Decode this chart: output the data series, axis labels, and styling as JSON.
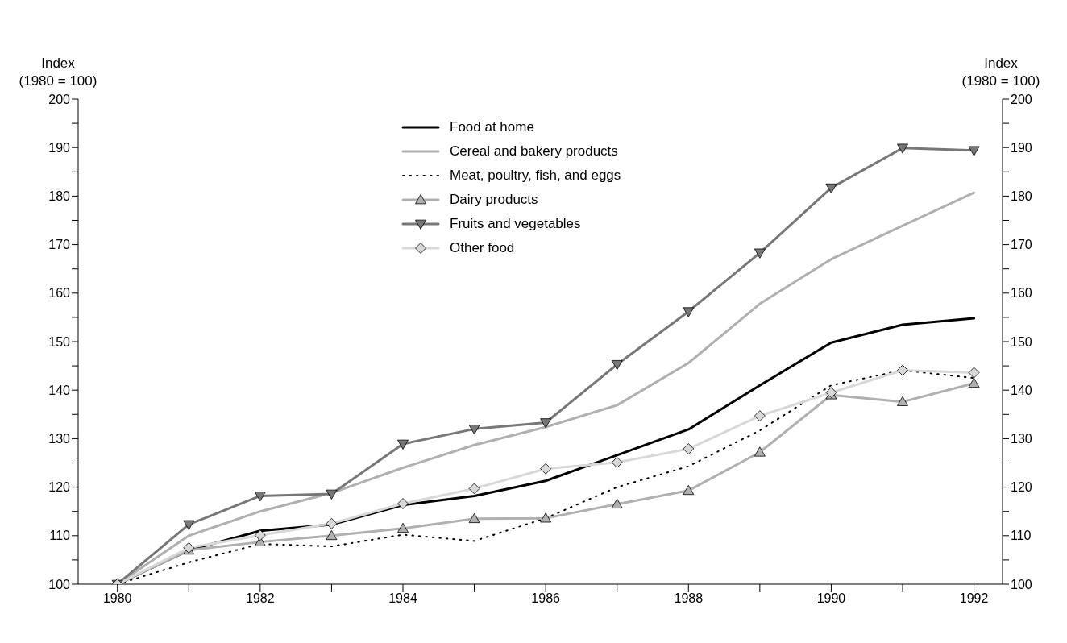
{
  "chart_data": {
    "type": "line",
    "ylabel": "Index\n(1980 = 100)",
    "y2label": "Index\n(1980 = 100)",
    "x": [
      1980,
      1981,
      1982,
      1983,
      1984,
      1985,
      1986,
      1987,
      1988,
      1989,
      1990,
      1991,
      1992
    ],
    "xlim": [
      1979.45,
      1992.4
    ],
    "xticks": [
      1980,
      {
        "value": 1981,
        "label": null
      },
      1982,
      {
        "value": 1983,
        "label": null
      },
      1984,
      {
        "value": 1985,
        "label": null
      },
      1986,
      {
        "value": 1987,
        "label": null
      },
      1988,
      {
        "value": 1989,
        "label": null
      },
      1990,
      {
        "value": 1991,
        "label": null
      },
      1992
    ],
    "ylim": [
      100,
      200
    ],
    "yticks": [
      100,
      {
        "value": 105,
        "label": null
      },
      110,
      {
        "value": 115,
        "label": null
      },
      120,
      {
        "value": 125,
        "label": null
      },
      130,
      {
        "value": 135,
        "label": null
      },
      140,
      {
        "value": 145,
        "label": null
      },
      150,
      {
        "value": 155,
        "label": null
      },
      160,
      {
        "value": 165,
        "label": null
      },
      170,
      {
        "value": 175,
        "label": null
      },
      180,
      {
        "value": 185,
        "label": null
      },
      190,
      {
        "value": 195,
        "label": null
      },
      200
    ],
    "y2lim": [
      100,
      200
    ],
    "y2ticks": [
      100,
      {
        "value": 105,
        "label": null
      },
      110,
      {
        "value": 115,
        "label": null
      },
      120,
      {
        "value": 125,
        "label": null
      },
      130,
      {
        "value": 135,
        "label": null
      },
      140,
      {
        "value": 145,
        "label": null
      },
      150,
      {
        "value": 155,
        "label": null
      },
      160,
      {
        "value": 165,
        "label": null
      },
      170,
      {
        "value": 175,
        "label": null
      },
      180,
      {
        "value": 185,
        "label": null
      },
      190,
      {
        "value": 195,
        "label": null
      },
      200
    ],
    "legend": "top",
    "series": [
      {
        "name": "Food at home",
        "color": "#000000",
        "line_style": "solid",
        "marker": "none",
        "values": [
          100,
          107,
          111,
          112.3,
          116.3,
          118.2,
          121.3,
          126.6,
          131.9,
          141,
          149.8,
          153.5,
          154.8
        ]
      },
      {
        "name": "Cereal and bakery products",
        "color": "#b0b0b0",
        "line_style": "solid",
        "marker": "none",
        "values": [
          100,
          110,
          115,
          118.8,
          124,
          128.7,
          132.4,
          136.9,
          145.6,
          157.8,
          167,
          173.9,
          180.7
        ]
      },
      {
        "name": "Meat, poultry, fish, and eggs",
        "color": "#000000",
        "line_style": "dotted",
        "marker": "none",
        "values": [
          100,
          104.5,
          108.3,
          107.8,
          110.2,
          108.9,
          113.6,
          120,
          124.3,
          131.7,
          141,
          144.1,
          142.5
        ]
      },
      {
        "name": "Dairy products",
        "color": "#b0b0b0",
        "line_style": "solid",
        "marker": "triangle",
        "values": [
          100,
          107,
          108.7,
          110,
          111.5,
          113.5,
          113.6,
          116.5,
          119.3,
          127.2,
          139,
          137.6,
          141.4
        ]
      },
      {
        "name": "Fruits and vegetables",
        "color": "#777777",
        "line_style": "solid",
        "marker": "triangle_down",
        "values": [
          100,
          112.3,
          118.2,
          118.6,
          128.9,
          132,
          133.3,
          145.3,
          156.2,
          168.3,
          181.7,
          189.9,
          189.4
        ]
      },
      {
        "name": "Other food",
        "color": "#d8d8d8",
        "line_style": "solid",
        "marker": "diamond",
        "values": [
          100,
          107.5,
          110.1,
          112.5,
          116.6,
          119.7,
          123.8,
          125.1,
          127.9,
          134.7,
          139.5,
          144.1,
          143.6
        ]
      }
    ]
  }
}
